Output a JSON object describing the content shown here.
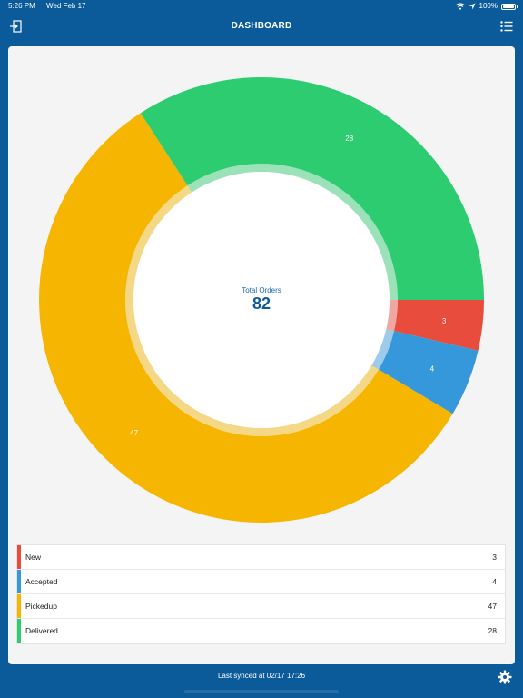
{
  "status_bar": {
    "time": "5:26 PM",
    "date": "Wed Feb 17",
    "battery": "100%"
  },
  "header": {
    "title": "DASHBOARD",
    "left_icon": "logout-icon",
    "right_icon": "list-icon"
  },
  "chart_data": {
    "type": "pie",
    "subtype": "donut",
    "center_title": "Total Orders",
    "center_value": "82",
    "slices": [
      {
        "label": "New",
        "value": 3,
        "color": "#e74c3c"
      },
      {
        "label": "Accepted",
        "value": 4,
        "color": "#3498db"
      },
      {
        "label": "Pickedup",
        "value": 47,
        "color": "#f6b500"
      },
      {
        "label": "Delivered",
        "value": 28,
        "color": "#2ecc71"
      }
    ]
  },
  "legend": [
    {
      "label": "New",
      "value": "3",
      "color": "#e74c3c"
    },
    {
      "label": "Accepted",
      "value": "4",
      "color": "#3498db"
    },
    {
      "label": "Pickedup",
      "value": "47",
      "color": "#f6b500"
    },
    {
      "label": "Delivered",
      "value": "28",
      "color": "#2ecc71"
    }
  ],
  "footer": {
    "sync_text": "Last synced at 02/17 17:26",
    "settings_icon": "gear-icon"
  },
  "colors": {
    "brand": "#0b5a99",
    "card": "#f4f4f4"
  }
}
